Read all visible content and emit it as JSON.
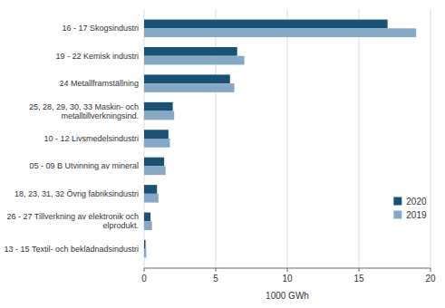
{
  "chart_data": {
    "type": "bar",
    "orientation": "horizontal",
    "categories": [
      "13 - 15 Textil- och beklädnadsindustri",
      "26 - 27 Tillverkning av elektronik och\nelprodukt.",
      "18, 23, 31, 32 Övrig fabriksindustri",
      "05 - 09 B Utvinning av mineral",
      "10 - 12 Livsmedelsindustri",
      "25, 28, 29, 30, 33 Maskin- och\nmetalltillverkningsind.",
      "24 Metallframställning",
      "19 - 22 Kemisk industri",
      "16 - 17 Skogsindustri"
    ],
    "series": [
      {
        "name": "2020",
        "color": "#1a5276",
        "values": [
          0.1,
          0.45,
          0.9,
          1.4,
          1.7,
          2.0,
          6.0,
          6.5,
          17.0
        ]
      },
      {
        "name": "2019",
        "color": "#85a9c5",
        "values": [
          0.15,
          0.55,
          1.0,
          1.5,
          1.8,
          2.1,
          6.3,
          7.0,
          19.0
        ]
      }
    ],
    "xlabel": "1000 GWh",
    "xlim": [
      0,
      20
    ],
    "xticks": [
      0,
      5,
      10,
      15,
      20
    ],
    "grid": true,
    "legend": "lower right"
  }
}
